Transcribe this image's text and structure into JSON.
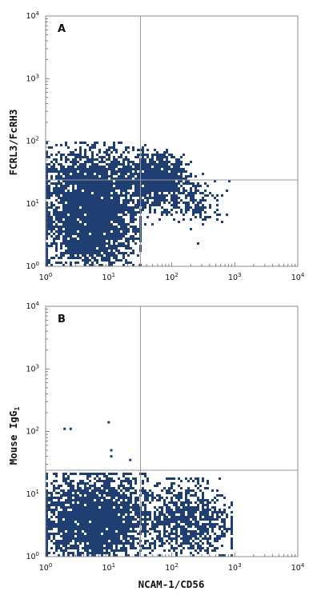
{
  "chart_data": [
    {
      "type": "scatter",
      "panel_label": "A",
      "xlabel": "",
      "ylabel": "FCRL3/FcRH3",
      "xscale": "log",
      "yscale": "log",
      "xlim": [
        1,
        10000
      ],
      "ylim": [
        1,
        10000
      ],
      "x_tick_labels": [
        {
          "base": "10",
          "exp": "0"
        },
        {
          "base": "10",
          "exp": "1"
        },
        {
          "base": "10",
          "exp": "2"
        },
        {
          "base": "10",
          "exp": "3"
        },
        {
          "base": "10",
          "exp": "4"
        }
      ],
      "y_tick_labels": [
        {
          "base": "10",
          "exp": "0"
        },
        {
          "base": "10",
          "exp": "1"
        },
        {
          "base": "10",
          "exp": "2"
        },
        {
          "base": "10",
          "exp": "3"
        },
        {
          "base": "10",
          "exp": "4"
        }
      ],
      "quadrant_gates": {
        "x": 32,
        "y": 24
      },
      "point_color": "#1f3f73",
      "populations": [
        {
          "x_range": [
            1,
            25
          ],
          "y_range": [
            1,
            30
          ],
          "density": "high"
        },
        {
          "x_range": [
            1,
            30
          ],
          "y_range": [
            10,
            80
          ],
          "density": "medium"
        },
        {
          "x_range": [
            20,
            150
          ],
          "y_range": [
            10,
            60
          ],
          "density": "medium"
        },
        {
          "x_range": [
            100,
            600
          ],
          "y_range": [
            5,
            25
          ],
          "density": "low"
        }
      ]
    },
    {
      "type": "scatter",
      "panel_label": "B",
      "xlabel": "NCAM-1/CD56",
      "ylabel": "Mouse IgG",
      "ylabel_subscript": "1",
      "xscale": "log",
      "yscale": "log",
      "xlim": [
        1,
        10000
      ],
      "ylim": [
        1,
        10000
      ],
      "x_tick_labels": [
        {
          "base": "10",
          "exp": "0"
        },
        {
          "base": "10",
          "exp": "1"
        },
        {
          "base": "10",
          "exp": "2"
        },
        {
          "base": "10",
          "exp": "3"
        },
        {
          "base": "10",
          "exp": "4"
        }
      ],
      "y_tick_labels": [
        {
          "base": "10",
          "exp": "0"
        },
        {
          "base": "10",
          "exp": "1"
        },
        {
          "base": "10",
          "exp": "2"
        },
        {
          "base": "10",
          "exp": "3"
        },
        {
          "base": "10",
          "exp": "4"
        }
      ],
      "quadrant_gates": {
        "x": 32,
        "y": 24
      },
      "point_color": "#1f3f73",
      "populations": [
        {
          "x_range": [
            1,
            30
          ],
          "y_range": [
            1,
            18
          ],
          "density": "high"
        },
        {
          "x_range": [
            30,
            700
          ],
          "y_range": [
            1,
            15
          ],
          "density": "medium"
        }
      ],
      "outliers": [
        [
          2,
          110
        ],
        [
          2.5,
          110
        ],
        [
          10,
          140
        ],
        [
          11,
          50
        ],
        [
          11,
          40
        ],
        [
          22,
          35
        ]
      ]
    }
  ]
}
